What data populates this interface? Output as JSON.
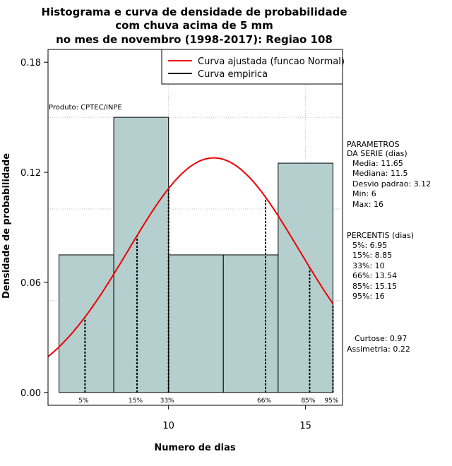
{
  "chart_data": {
    "type": "histogram",
    "title_lines": [
      "Histograma e curva de densidade de probabilidade",
      "com chuva acima de 5 mm",
      "no mes de novembro (1998-2017): Regiao 108"
    ],
    "xlabel": "Numero de dias",
    "ylabel": "Densidade de probabilidade",
    "xlim": [
      5.6,
      16.35
    ],
    "ylim": [
      -0.007,
      0.187
    ],
    "x_ticks": [
      10,
      15
    ],
    "y_ticks": [
      0.0,
      0.06,
      0.12,
      0.18
    ],
    "y_tick_labels": [
      "0.00",
      "0.06",
      "0.12",
      "0.18"
    ],
    "grid_x": [
      10,
      15
    ],
    "grid_y": [
      0.05,
      0.1,
      0.15
    ],
    "bins": [
      {
        "x0": 6,
        "x1": 8,
        "density": 0.075
      },
      {
        "x0": 8,
        "x1": 10,
        "density": 0.15
      },
      {
        "x0": 10,
        "x1": 12,
        "density": 0.075
      },
      {
        "x0": 12,
        "x1": 14,
        "density": 0.075
      },
      {
        "x0": 14,
        "x1": 16,
        "density": 0.125
      }
    ],
    "normal_fit": {
      "mean": 11.65,
      "sd": 3.12
    },
    "percentiles": [
      {
        "label": "5%",
        "value": 6.95
      },
      {
        "label": "15%",
        "value": 8.85
      },
      {
        "label": "33%",
        "value": 10
      },
      {
        "label": "66%",
        "value": 13.54
      },
      {
        "label": "85%",
        "value": 15.15
      },
      {
        "label": "95%",
        "value": 16
      }
    ],
    "legend": [
      {
        "label": "Curva ajustada (funcao Normal)",
        "color": "#ee0000"
      },
      {
        "label": "Curva empirica",
        "color": "#000000"
      }
    ],
    "legend_position": "top-right",
    "colors": {
      "bar_fill": "#b5cece",
      "curve": "#ee0000",
      "grid": "#bbbbbb"
    }
  },
  "credit": "Produto: CPTEC/INPE",
  "parametros": {
    "heading": [
      "PARAMETROS",
      "DA SERIE (dias)"
    ],
    "items": [
      "Media: 11.65",
      "Mediana: 11.5",
      "Desvio padrao: 3.12",
      "Min: 6",
      "Max: 16"
    ]
  },
  "percentis": {
    "heading": "PERCENTIS (dias)",
    "items": [
      "5%: 6.95",
      "15%: 8.85",
      "33%: 10",
      "66%: 13.54",
      "85%: 15.15",
      "95%: 16"
    ]
  },
  "shape": {
    "curtose": "Curtose: 0.97",
    "assimetria": "Assimetria: 0.22"
  }
}
